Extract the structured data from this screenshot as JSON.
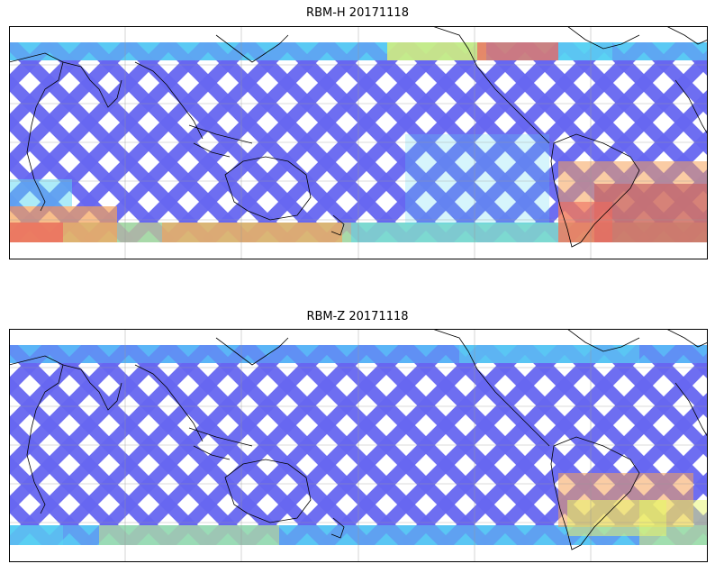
{
  "maps": [
    {
      "title": "RBM-H 20171118",
      "colors": {
        "base": "#6666f0",
        "cyan": "#5ad8f2",
        "lightblue": "#5bb5f7",
        "yellow": "#e8f56a",
        "orange": "#f5a35a",
        "red": "#ef6a5e",
        "darkred": "#c96a6a"
      }
    },
    {
      "title": "RBM-Z 20171118",
      "colors": {
        "base": "#6666f0",
        "cyan": "#5ad8f2",
        "lightblue": "#5bb5f7",
        "yellow": "#e8f56a",
        "orange": "#f5a35a",
        "red": "#ef6a5e",
        "darkred": "#c96a6a"
      }
    }
  ]
}
